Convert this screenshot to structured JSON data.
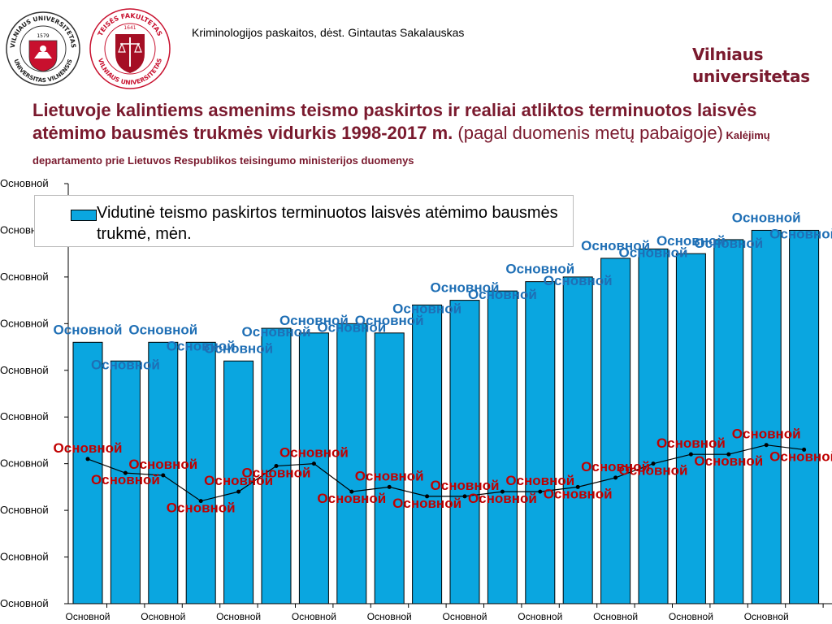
{
  "header": {
    "caption": "Kriminologijos paskaitos, dėst. Gintautas Sakalauskas",
    "brand_line1": "Vilniaus",
    "brand_line2": "universitetas"
  },
  "logos": {
    "vu_ring_top": "VILNIAUS UNIVERSITETAS",
    "vu_ring_bottom": "UNIVERSITAS VILNENSIS",
    "vu_year": "1579",
    "tf_ring_top": "TEISĖS FAKULTETAS",
    "tf_ring_bottom": "VILNIAUS UNIVERSITETAS",
    "tf_year": "1641"
  },
  "title": {
    "bold_part": "Lietuvoje kalintiems asmenims teismo paskirtos ir realiai atliktos terminuotos laisvės atėmimo bausmės trukmės vidurkis 1998-2017 m.",
    "normal_part": " (pagal duomenis metų pabaigoje)",
    "source": " Kalėjimų departamento prie Lietuvos Respublikos teisingumo ministerijos duomenys"
  },
  "legend": {
    "label": "Vidutinė teismo paskirtos terminuotos laisvės atėmimo bausmės trukmė, mėn."
  },
  "colors": {
    "bar": "#0aa6e0",
    "bar_label": "#1f6fb5",
    "line_label": "#c00000",
    "line": "#000000"
  },
  "chart_data": {
    "type": "bar",
    "placeholder_label": "Основной",
    "y_tick_labels": [
      "Основной",
      "Основной",
      "Основной",
      "Основной",
      "Основной",
      "Основной",
      "Основной",
      "Основной",
      "Основной",
      "Основной"
    ],
    "x_tick_labels": [
      "Основной",
      "Основной",
      "Основной",
      "Основной",
      "Основной",
      "Основной",
      "Основной",
      "Основной",
      "Основной",
      "Основной"
    ],
    "ylim": [
      0,
      9
    ],
    "series": [
      {
        "name": "Vidutinė teismo paskirtos terminuotos laisvės atėmimo bausmės trukmė, mėn.",
        "kind": "bar",
        "values": [
          5.6,
          5.2,
          5.6,
          5.6,
          5.2,
          5.9,
          5.8,
          6.0,
          5.8,
          6.4,
          6.5,
          6.7,
          6.9,
          7.0,
          7.4,
          7.6,
          7.5,
          7.8,
          8.0,
          8.0
        ],
        "label_text": "Основной"
      },
      {
        "kind": "line",
        "values": [
          3.1,
          2.8,
          2.75,
          2.2,
          2.4,
          2.95,
          3.0,
          2.4,
          2.5,
          2.3,
          2.3,
          2.4,
          2.4,
          2.5,
          2.7,
          3.0,
          3.2,
          3.2,
          3.4,
          3.3
        ],
        "label_text": "Основной"
      }
    ]
  }
}
